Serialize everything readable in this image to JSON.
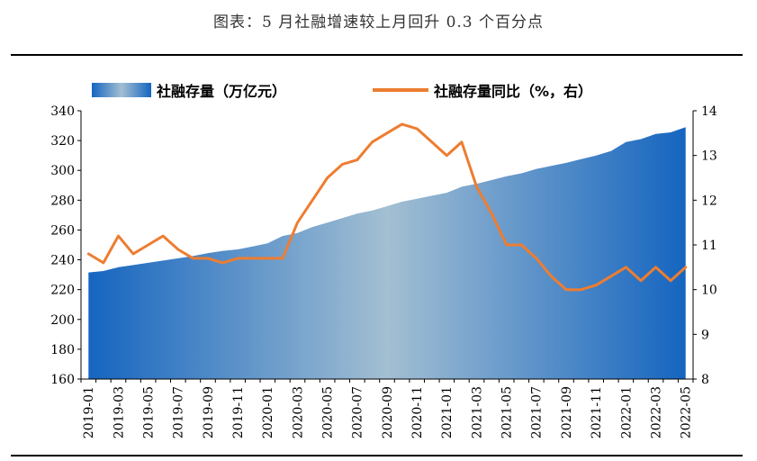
{
  "figure_title": "图表：5 月社融增速较上月回升 0.3 个百分点",
  "colors": {
    "area_edge": "#1565c0",
    "area_center": "#a3bfd2",
    "line": "#ed7d31",
    "axis": "#000000"
  },
  "chart_data": {
    "type": "area",
    "title": "图表：5 月社融增速较上月回升 0.3 个百分点",
    "categories": [
      "2019-01",
      "2019-02",
      "2019-03",
      "2019-04",
      "2019-05",
      "2019-06",
      "2019-07",
      "2019-08",
      "2019-09",
      "2019-10",
      "2019-11",
      "2019-12",
      "2020-01",
      "2020-02",
      "2020-03",
      "2020-04",
      "2020-05",
      "2020-06",
      "2020-07",
      "2020-08",
      "2020-09",
      "2020-10",
      "2020-11",
      "2020-12",
      "2021-01",
      "2021-02",
      "2021-03",
      "2021-04",
      "2021-05",
      "2021-06",
      "2021-07",
      "2021-08",
      "2021-09",
      "2021-10",
      "2021-11",
      "2021-12",
      "2022-01",
      "2022-02",
      "2022-03",
      "2022-04",
      "2022-05"
    ],
    "x_tick_labels": [
      "2019-01",
      "2019-03",
      "2019-05",
      "2019-07",
      "2019-09",
      "2019-11",
      "2020-01",
      "2020-03",
      "2020-05",
      "2020-07",
      "2020-09",
      "2020-11",
      "2021-01",
      "2021-03",
      "2021-05",
      "2021-07",
      "2021-09",
      "2021-11",
      "2022-01",
      "2022-03",
      "2022-05"
    ],
    "series": [
      {
        "name": "社融存量（万亿元）",
        "type": "area",
        "axis": "left",
        "values": [
          231.5,
          232.5,
          235,
          236.5,
          238,
          239.5,
          241,
          242.5,
          244.5,
          246,
          247,
          249,
          251,
          256,
          258,
          262,
          265,
          268,
          271,
          273,
          276,
          279,
          281,
          283,
          285,
          289,
          291,
          293.5,
          296,
          298,
          301,
          303,
          305,
          307.5,
          310,
          313,
          319,
          321,
          324.5,
          325.5,
          329
        ]
      },
      {
        "name": "社融存量同比（%，右）",
        "type": "line",
        "axis": "right",
        "values": [
          10.8,
          10.6,
          11.2,
          10.8,
          11.0,
          11.2,
          10.9,
          10.7,
          10.7,
          10.6,
          10.7,
          10.7,
          10.7,
          10.7,
          11.5,
          12.0,
          12.5,
          12.8,
          12.9,
          13.3,
          13.5,
          13.7,
          13.6,
          13.3,
          13.0,
          13.3,
          12.3,
          11.7,
          11.0,
          11.0,
          10.7,
          10.3,
          10.0,
          10.0,
          10.1,
          10.3,
          10.5,
          10.2,
          10.5,
          10.2,
          10.5
        ]
      }
    ],
    "yaxis_left": {
      "ylim": [
        160,
        340
      ],
      "ticks": [
        160,
        180,
        200,
        220,
        240,
        260,
        280,
        300,
        320,
        340
      ]
    },
    "yaxis_right": {
      "ylim": [
        8,
        14
      ],
      "ticks": [
        8,
        9,
        10,
        11,
        12,
        13,
        14
      ]
    },
    "legend_position": "top",
    "grid": false
  }
}
